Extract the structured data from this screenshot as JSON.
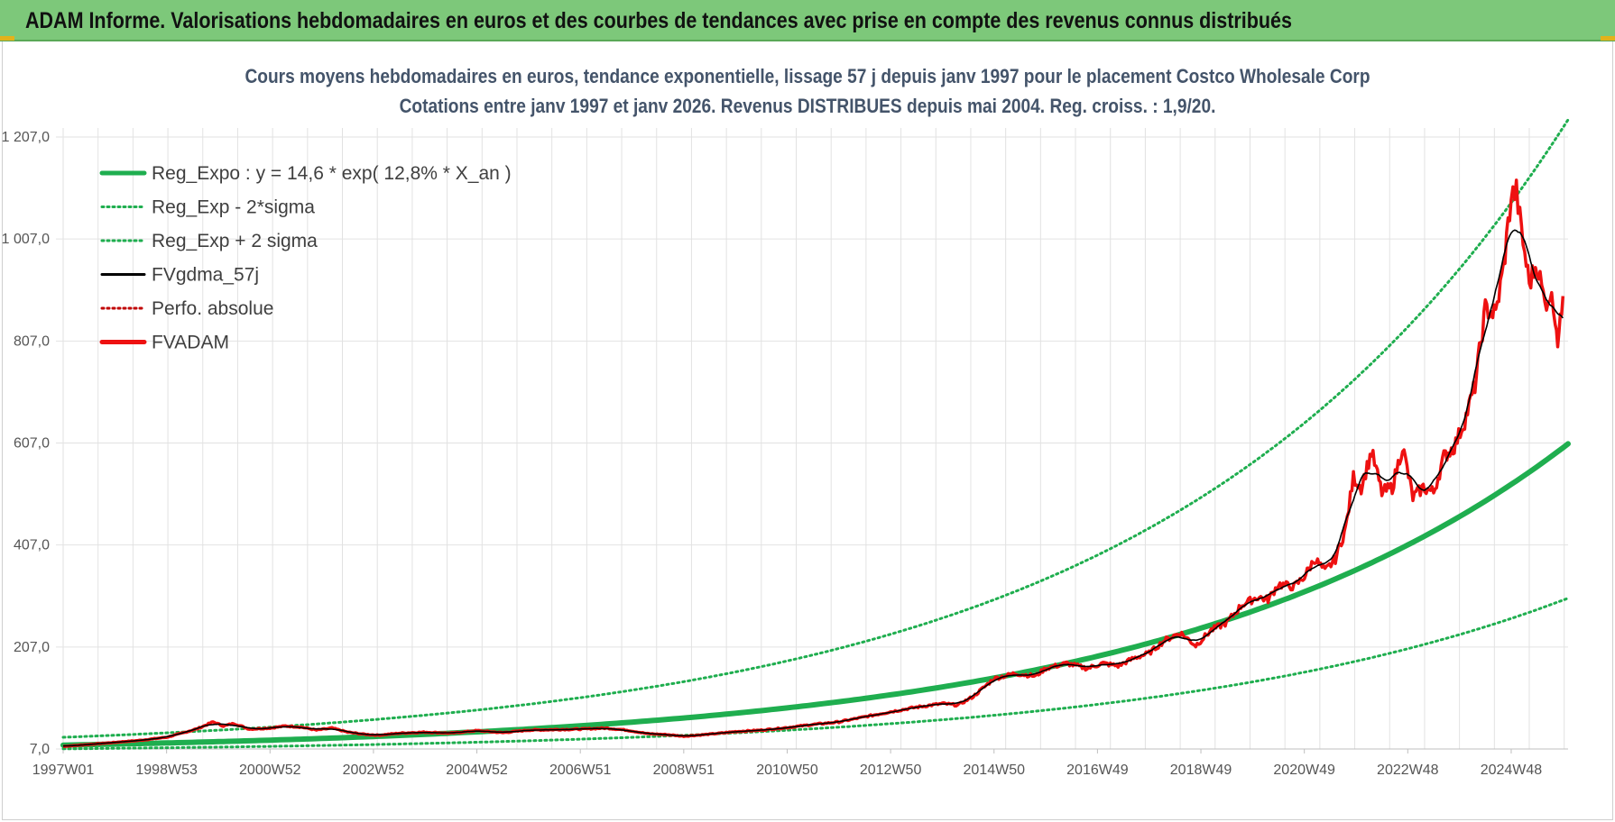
{
  "banner": {
    "title": "ADAM Informe. Valorisations hebdomadaires en euros et des courbes de tendances avec prise en compte des revenus connus distribués"
  },
  "colors": {
    "banner": "#7dc87a",
    "trend": "#1fae4f",
    "series": "#ee1111",
    "smooth": "#000000",
    "grid": "#e2e2e2"
  },
  "chart_data": {
    "type": "line",
    "title": "Cours moyens hebdomadaires en euros, tendance exponentielle, lissage 57 j depuis janv 1997  pour le placement Costco Wholesale Corp",
    "subtitle": "Cotations entre janv 1997 et janv 2026. Revenus DISTRIBUES depuis mai 2004. Reg. croiss. : 1,9/20.",
    "ylim": [
      7,
      1207
    ],
    "yticks": [
      7,
      207,
      407,
      607,
      807,
      1007,
      1207
    ],
    "ytick_labels": [
      "7,0",
      "207,0",
      "407,0",
      "607,0",
      "807,0",
      "1 007,0",
      "1 207,0"
    ],
    "xlim": [
      1997.0,
      2026.1
    ],
    "xticks": [
      1997.0,
      1999.0,
      2001.0,
      2003.0,
      2005.0,
      2007.0,
      2009.0,
      2011.0,
      2013.0,
      2015.0,
      2017.0,
      2019.0,
      2021.0,
      2023.0,
      2025.0
    ],
    "xtick_labels": [
      "1997W01",
      "1998W53",
      "2000W52",
      "2002W52",
      "2004W52",
      "2006W51",
      "2008W51",
      "2010W50",
      "2012W50",
      "2014W50",
      "2016W49",
      "2018W49",
      "2020W49",
      "2022W48",
      "2024W48"
    ],
    "grid": true,
    "legend_position": "top-left",
    "legend": [
      {
        "label": "Reg_Expo : y = 14,6 * exp( 12,8% *  X_an )",
        "color": "#1fae4f",
        "style": "solid-thick"
      },
      {
        "label": "Reg_Exp - 2*sigma",
        "color": "#1fae4f",
        "style": "dotted"
      },
      {
        "label": "Reg_Exp + 2 sigma",
        "color": "#1fae4f",
        "style": "dotted"
      },
      {
        "label": "FVgdma_57j",
        "color": "#000000",
        "style": "solid"
      },
      {
        "label": "Perfo. absolue",
        "color": "#c00000",
        "style": "dotted"
      },
      {
        "label": "FVADAM",
        "color": "#ee1111",
        "style": "solid-thick"
      }
    ],
    "trend": {
      "a": 14.6,
      "b": 0.128,
      "lower_factor": 0.5,
      "upper_factor": 2.05
    },
    "series": [
      {
        "name": "FVADAM",
        "x": [
          1997.0,
          1997.5,
          1998.0,
          1998.5,
          1999.0,
          1999.3,
          1999.6,
          1999.9,
          2000.1,
          2000.3,
          2000.6,
          2001.0,
          2001.3,
          2001.6,
          2001.9,
          2002.2,
          2002.5,
          2002.8,
          2003.1,
          2003.5,
          2004.0,
          2004.5,
          2005.0,
          2005.5,
          2006.0,
          2006.5,
          2007.0,
          2007.5,
          2007.9,
          2008.3,
          2008.7,
          2009.0,
          2009.5,
          2010.0,
          2010.5,
          2011.0,
          2011.5,
          2012.0,
          2012.5,
          2013.0,
          2013.5,
          2014.0,
          2014.3,
          2014.6,
          2015.0,
          2015.4,
          2015.8,
          2016.0,
          2016.4,
          2016.8,
          2017.1,
          2017.4,
          2017.7,
          2018.0,
          2018.3,
          2018.6,
          2018.9,
          2019.2,
          2019.5,
          2019.8,
          2020.1,
          2020.3,
          2020.5,
          2020.8,
          2021.0,
          2021.2,
          2021.4,
          2021.6,
          2021.8,
          2021.95,
          2022.1,
          2022.3,
          2022.5,
          2022.7,
          2022.9,
          2023.1,
          2023.3,
          2023.5,
          2023.7,
          2023.9,
          2024.1,
          2024.3,
          2024.5,
          2024.7,
          2024.85,
          2025.0,
          2025.1,
          2025.2,
          2025.35,
          2025.5,
          2025.65,
          2025.75,
          2025.85,
          2025.9,
          2025.95,
          2026.0
        ],
        "y": [
          12,
          16,
          20,
          24,
          30,
          38,
          47,
          60,
          52,
          57,
          46,
          48,
          52,
          50,
          44,
          48,
          40,
          36,
          34,
          38,
          40,
          38,
          43,
          39,
          44,
          45,
          46,
          48,
          44,
          37,
          35,
          32,
          36,
          41,
          44,
          49,
          55,
          60,
          70,
          80,
          89,
          96,
          93,
          110,
          145,
          155,
          150,
          165,
          175,
          165,
          175,
          170,
          185,
          195,
          220,
          235,
          210,
          240,
          255,
          290,
          305,
          300,
          330,
          325,
          345,
          380,
          355,
          380,
          440,
          540,
          520,
          590,
          510,
          520,
          600,
          500,
          520,
          510,
          580,
          600,
          650,
          720,
          870,
          860,
          950,
          1090,
          1100,
          1020,
          920,
          960,
          880,
          900,
          860,
          810,
          840,
          895
        ]
      },
      {
        "name": "FVgdma_57j",
        "derived_from": "FVADAM",
        "window_weeks": 8
      },
      {
        "name": "Reg_Expo : y = 14,6 * exp( 12,8% *  X_an )"
      },
      {
        "name": "Reg_Exp - 2*sigma"
      },
      {
        "name": "Reg_Exp + 2 sigma"
      }
    ]
  }
}
